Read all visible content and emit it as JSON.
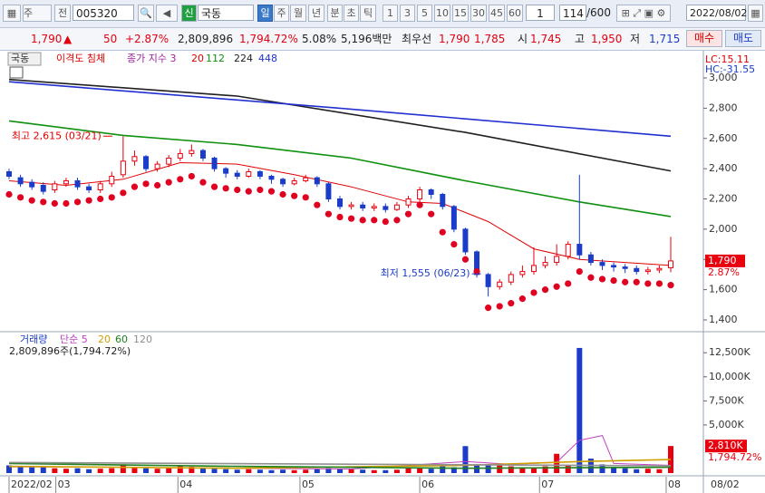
{
  "toolbar": {
    "items": [
      "주",
      "전",
      "005320",
      "신",
      "국동",
      "일",
      "주",
      "월",
      "년",
      "분",
      "초",
      "틱",
      "1",
      "3",
      "5",
      "10",
      "15",
      "30",
      "45",
      "60",
      "1",
      "114",
      "/600",
      "2022/08/02"
    ]
  },
  "quote": {
    "items": [
      "1,790",
      "▲",
      "50",
      "+2.87%",
      "2,809,896",
      "1,794.72%",
      "5.08%",
      "5,196백만",
      "최우선",
      "1,790",
      "1,785",
      "시",
      "1,745",
      "고",
      "1,950",
      "저",
      "1,715",
      "매수",
      "매도"
    ]
  },
  "chart_data": [
    {
      "type": "candlestick",
      "symbol": "국동",
      "indicators": [
        "이격도 침체",
        "종가 지수 3"
      ],
      "lc": "LC:15.11",
      "hc": "HC:-31.55",
      "up_color": "#e8000f",
      "down_color": "#1a3cc8",
      "open": [
        2380,
        2340,
        2310,
        2290,
        2260,
        2300,
        2320,
        2280,
        2260,
        2300,
        2360,
        2450,
        2480,
        2400,
        2430,
        2470,
        2500,
        2520,
        2470,
        2400,
        2370,
        2350,
        2380,
        2350,
        2330,
        2300,
        2320,
        2340,
        2300,
        2200,
        2150,
        2160,
        2140,
        2150,
        2130,
        2160,
        2200,
        2260,
        2230,
        2150,
        2000,
        1850,
        1700,
        1620,
        1650,
        1700,
        1720,
        1760,
        1780,
        1820,
        1900,
        1830,
        1780,
        1760,
        1750,
        1740,
        1720,
        1730,
        1745
      ],
      "high": [
        2400,
        2360,
        2330,
        2310,
        2320,
        2340,
        2340,
        2300,
        2320,
        2380,
        2615,
        2520,
        2490,
        2450,
        2490,
        2530,
        2560,
        2530,
        2480,
        2410,
        2390,
        2400,
        2390,
        2360,
        2340,
        2340,
        2360,
        2350,
        2310,
        2220,
        2180,
        2180,
        2170,
        2170,
        2180,
        2220,
        2280,
        2270,
        2240,
        2160,
        2010,
        1860,
        1710,
        1670,
        1720,
        1760,
        1880,
        1820,
        1900,
        1920,
        2360,
        1850,
        1800,
        1780,
        1770,
        1760,
        1750,
        1760,
        1950
      ],
      "low": [
        2330,
        2280,
        2260,
        2230,
        2240,
        2280,
        2260,
        2240,
        2240,
        2280,
        2340,
        2420,
        2380,
        2380,
        2410,
        2450,
        2480,
        2450,
        2380,
        2340,
        2330,
        2340,
        2330,
        2300,
        2280,
        2290,
        2310,
        2280,
        2180,
        2130,
        2130,
        2120,
        2120,
        2110,
        2120,
        2140,
        2180,
        2200,
        2130,
        1980,
        1830,
        1680,
        1555,
        1600,
        1630,
        1680,
        1700,
        1740,
        1760,
        1800,
        1800,
        1760,
        1730,
        1720,
        1710,
        1700,
        1700,
        1710,
        1715
      ],
      "close": [
        2350,
        2300,
        2280,
        2250,
        2300,
        2320,
        2280,
        2260,
        2300,
        2350,
        2450,
        2480,
        2400,
        2430,
        2470,
        2500,
        2520,
        2470,
        2400,
        2370,
        2350,
        2380,
        2350,
        2330,
        2300,
        2320,
        2340,
        2300,
        2200,
        2150,
        2160,
        2140,
        2150,
        2130,
        2160,
        2200,
        2260,
        2230,
        2150,
        2000,
        1850,
        1700,
        1620,
        1650,
        1700,
        1720,
        1760,
        1780,
        1820,
        1900,
        1830,
        1780,
        1760,
        1750,
        1740,
        1720,
        1730,
        1740,
        1790
      ],
      "sar": {
        "color": "#e00020",
        "values": [
          2230,
          2210,
          2190,
          2180,
          2170,
          2170,
          2180,
          2190,
          2200,
          2210,
          2240,
          2280,
          2300,
          2290,
          2310,
          2330,
          2350,
          2310,
          2280,
          2270,
          2260,
          2250,
          2260,
          2250,
          2230,
          2220,
          2210,
          2160,
          2100,
          2080,
          2070,
          2060,
          2060,
          2050,
          2060,
          2100,
          2160,
          2100,
          1980,
          1900,
          1800,
          1720,
          1480,
          1490,
          1510,
          1540,
          1580,
          1600,
          1620,
          1640,
          1720,
          1680,
          1670,
          1660,
          1650,
          1650,
          1640,
          1640,
          1630
        ]
      },
      "lines": [
        {
          "name": "20",
          "color": "#e00000",
          "x": [
            0,
            5,
            10,
            15,
            20,
            25,
            30,
            35,
            38,
            42,
            46,
            50,
            54,
            58
          ],
          "values": [
            2320,
            2290,
            2330,
            2440,
            2430,
            2360,
            2280,
            2180,
            2170,
            2050,
            1870,
            1800,
            1780,
            1760
          ]
        },
        {
          "name": "112",
          "color": "#109010",
          "x": [
            0,
            10,
            20,
            30,
            40,
            50,
            58
          ],
          "values": [
            2716,
            2620,
            2560,
            2470,
            2320,
            2180,
            2084
          ]
        },
        {
          "name": "224",
          "color": "#202020",
          "x": [
            0,
            20,
            40,
            58
          ],
          "values": [
            2990,
            2880,
            2640,
            2385
          ]
        },
        {
          "name": "448",
          "color": "#2030d0",
          "x": [
            0,
            29,
            58
          ],
          "values": [
            2975,
            2800,
            2615
          ]
        }
      ],
      "high_note": "최고 2,615 (03/21)",
      "low_note": "최저 1,555 (06/23)",
      "last_label": "1,790",
      "last_change": "2.87%",
      "xlim": [
        0,
        58
      ],
      "ylim": [
        1346,
        3078
      ],
      "yticks": [
        {
          "value": 1400,
          "label": "1,400"
        },
        {
          "value": 1600,
          "label": "1,600"
        },
        {
          "value": 1800,
          "label": "1,800"
        },
        {
          "value": 2000,
          "label": "2,000"
        },
        {
          "value": 2200,
          "label": "2,200"
        },
        {
          "value": 2400,
          "label": "2,400"
        },
        {
          "value": 2600,
          "label": "2,600"
        },
        {
          "value": 2800,
          "label": "2,800"
        },
        {
          "value": 3000,
          "label": "3,000"
        }
      ]
    },
    {
      "type": "bar",
      "name": "거래량",
      "info": "2,809,896주(1,794.72%)",
      "values": [
        800,
        700,
        600,
        650,
        500,
        450,
        500,
        400,
        450,
        500,
        900,
        600,
        500,
        450,
        600,
        700,
        650,
        500,
        450,
        400,
        350,
        400,
        350,
        300,
        350,
        300,
        350,
        400,
        500,
        450,
        400,
        350,
        300,
        300,
        350,
        500,
        600,
        450,
        700,
        600,
        2800,
        900,
        800,
        900,
        700,
        600,
        500,
        700,
        2000,
        800,
        13000,
        1500,
        900,
        600,
        500,
        400,
        450,
        400,
        2810
      ],
      "lines": [
        {
          "name": "단순 5",
          "color": "#c040c0",
          "x": [
            0,
            10,
            20,
            30,
            40,
            44,
            48,
            50,
            52,
            53,
            58
          ],
          "values": [
            650,
            600,
            500,
            420,
            1200,
            900,
            1100,
            3400,
            3900,
            1000,
            800
          ]
        },
        {
          "name": "20",
          "color": "#d0a000",
          "x": [
            0,
            20,
            40,
            50,
            58
          ],
          "values": [
            700,
            500,
            800,
            1200,
            1400
          ]
        },
        {
          "name": "60",
          "color": "#208020",
          "x": [
            0,
            20,
            40,
            58
          ],
          "values": [
            1000,
            700,
            500,
            600
          ]
        },
        {
          "name": "120",
          "color": "#909090",
          "x": [
            0,
            58
          ],
          "values": [
            1100,
            750
          ]
        }
      ],
      "last_label": "2,810K",
      "last_ratio": "1,794.72%",
      "cursor_date": "08/02",
      "xlim": [
        0,
        58
      ],
      "ylim": [
        0,
        14500
      ],
      "yticks": [
        {
          "value": 5000,
          "label": "5,000K"
        },
        {
          "value": 7500,
          "label": "7,500K"
        },
        {
          "value": 10000,
          "label": "10,000K"
        },
        {
          "value": 12500,
          "label": "12,500K"
        }
      ],
      "xticks": [
        {
          "value": 0,
          "label": "2022/02"
        },
        {
          "value": 4.1,
          "label": "03"
        },
        {
          "value": 14.8,
          "label": "04"
        },
        {
          "value": 25.5,
          "label": "05"
        },
        {
          "value": 36,
          "label": "06"
        },
        {
          "value": 46.5,
          "label": "07"
        },
        {
          "value": 57.6,
          "label": "08"
        }
      ]
    }
  ]
}
